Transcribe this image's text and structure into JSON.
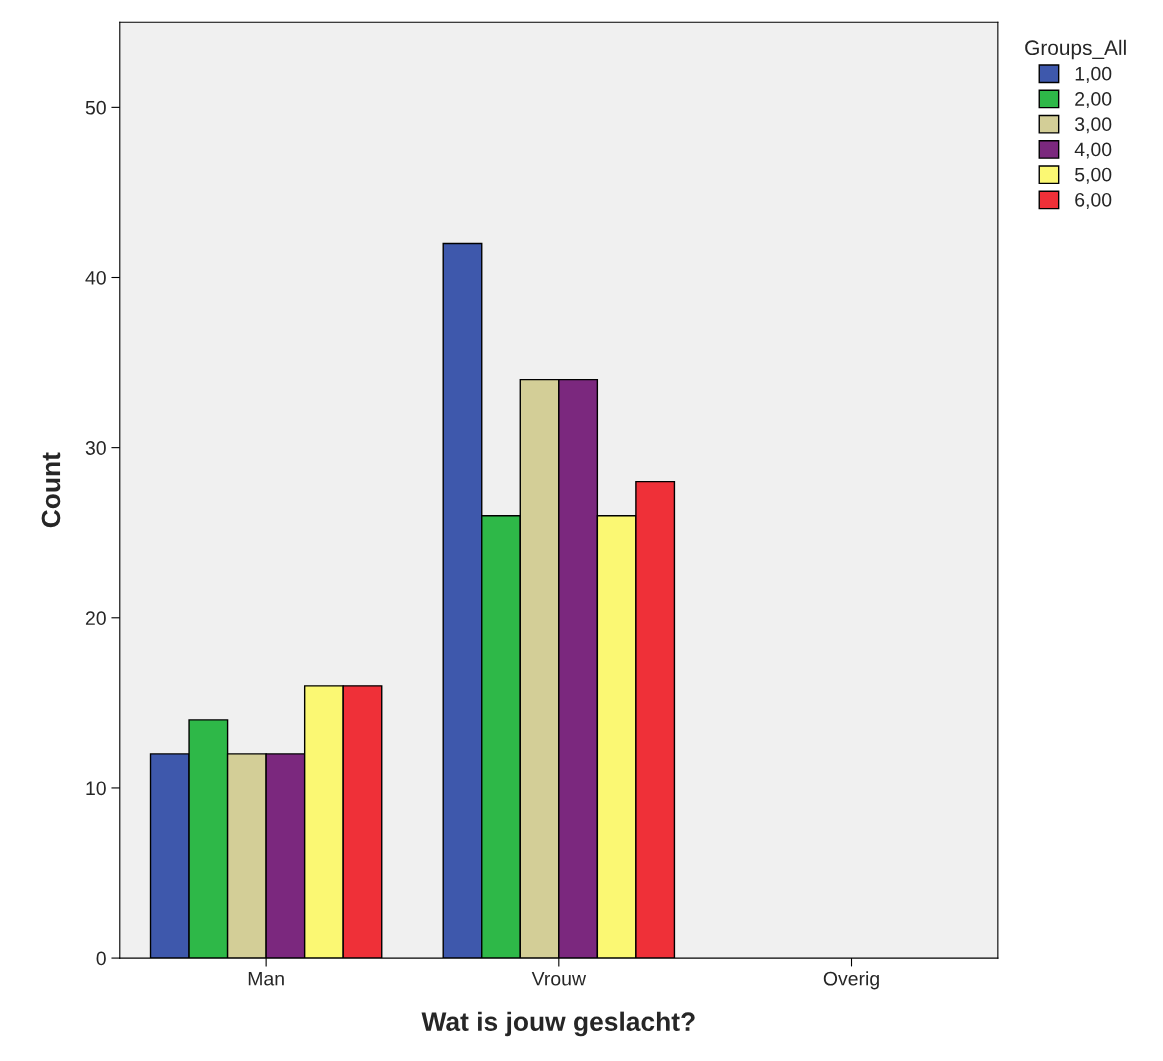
{
  "chart_data": {
    "type": "bar",
    "xlabel": "Wat is jouw geslacht?",
    "ylabel": "Count",
    "legend_title": "Groups_All",
    "categories": [
      "Man",
      "Vrouw",
      "Overig"
    ],
    "series": [
      {
        "name": "1,00",
        "color": "#3e58ac",
        "values": [
          12,
          42,
          null
        ]
      },
      {
        "name": "2,00",
        "color": "#2eb848",
        "values": [
          14,
          26,
          null
        ]
      },
      {
        "name": "3,00",
        "color": "#d3ce97",
        "values": [
          12,
          34,
          null
        ]
      },
      {
        "name": "4,00",
        "color": "#7b287e",
        "values": [
          12,
          34,
          null
        ]
      },
      {
        "name": "5,00",
        "color": "#fbf873",
        "values": [
          16,
          26,
          null
        ]
      },
      {
        "name": "6,00",
        "color": "#ef3038",
        "values": [
          16,
          28,
          null
        ]
      }
    ],
    "ylim": [
      0,
      55
    ],
    "yticks": [
      0,
      10,
      20,
      30,
      40,
      50
    ],
    "grid": false,
    "legend": "top right"
  }
}
